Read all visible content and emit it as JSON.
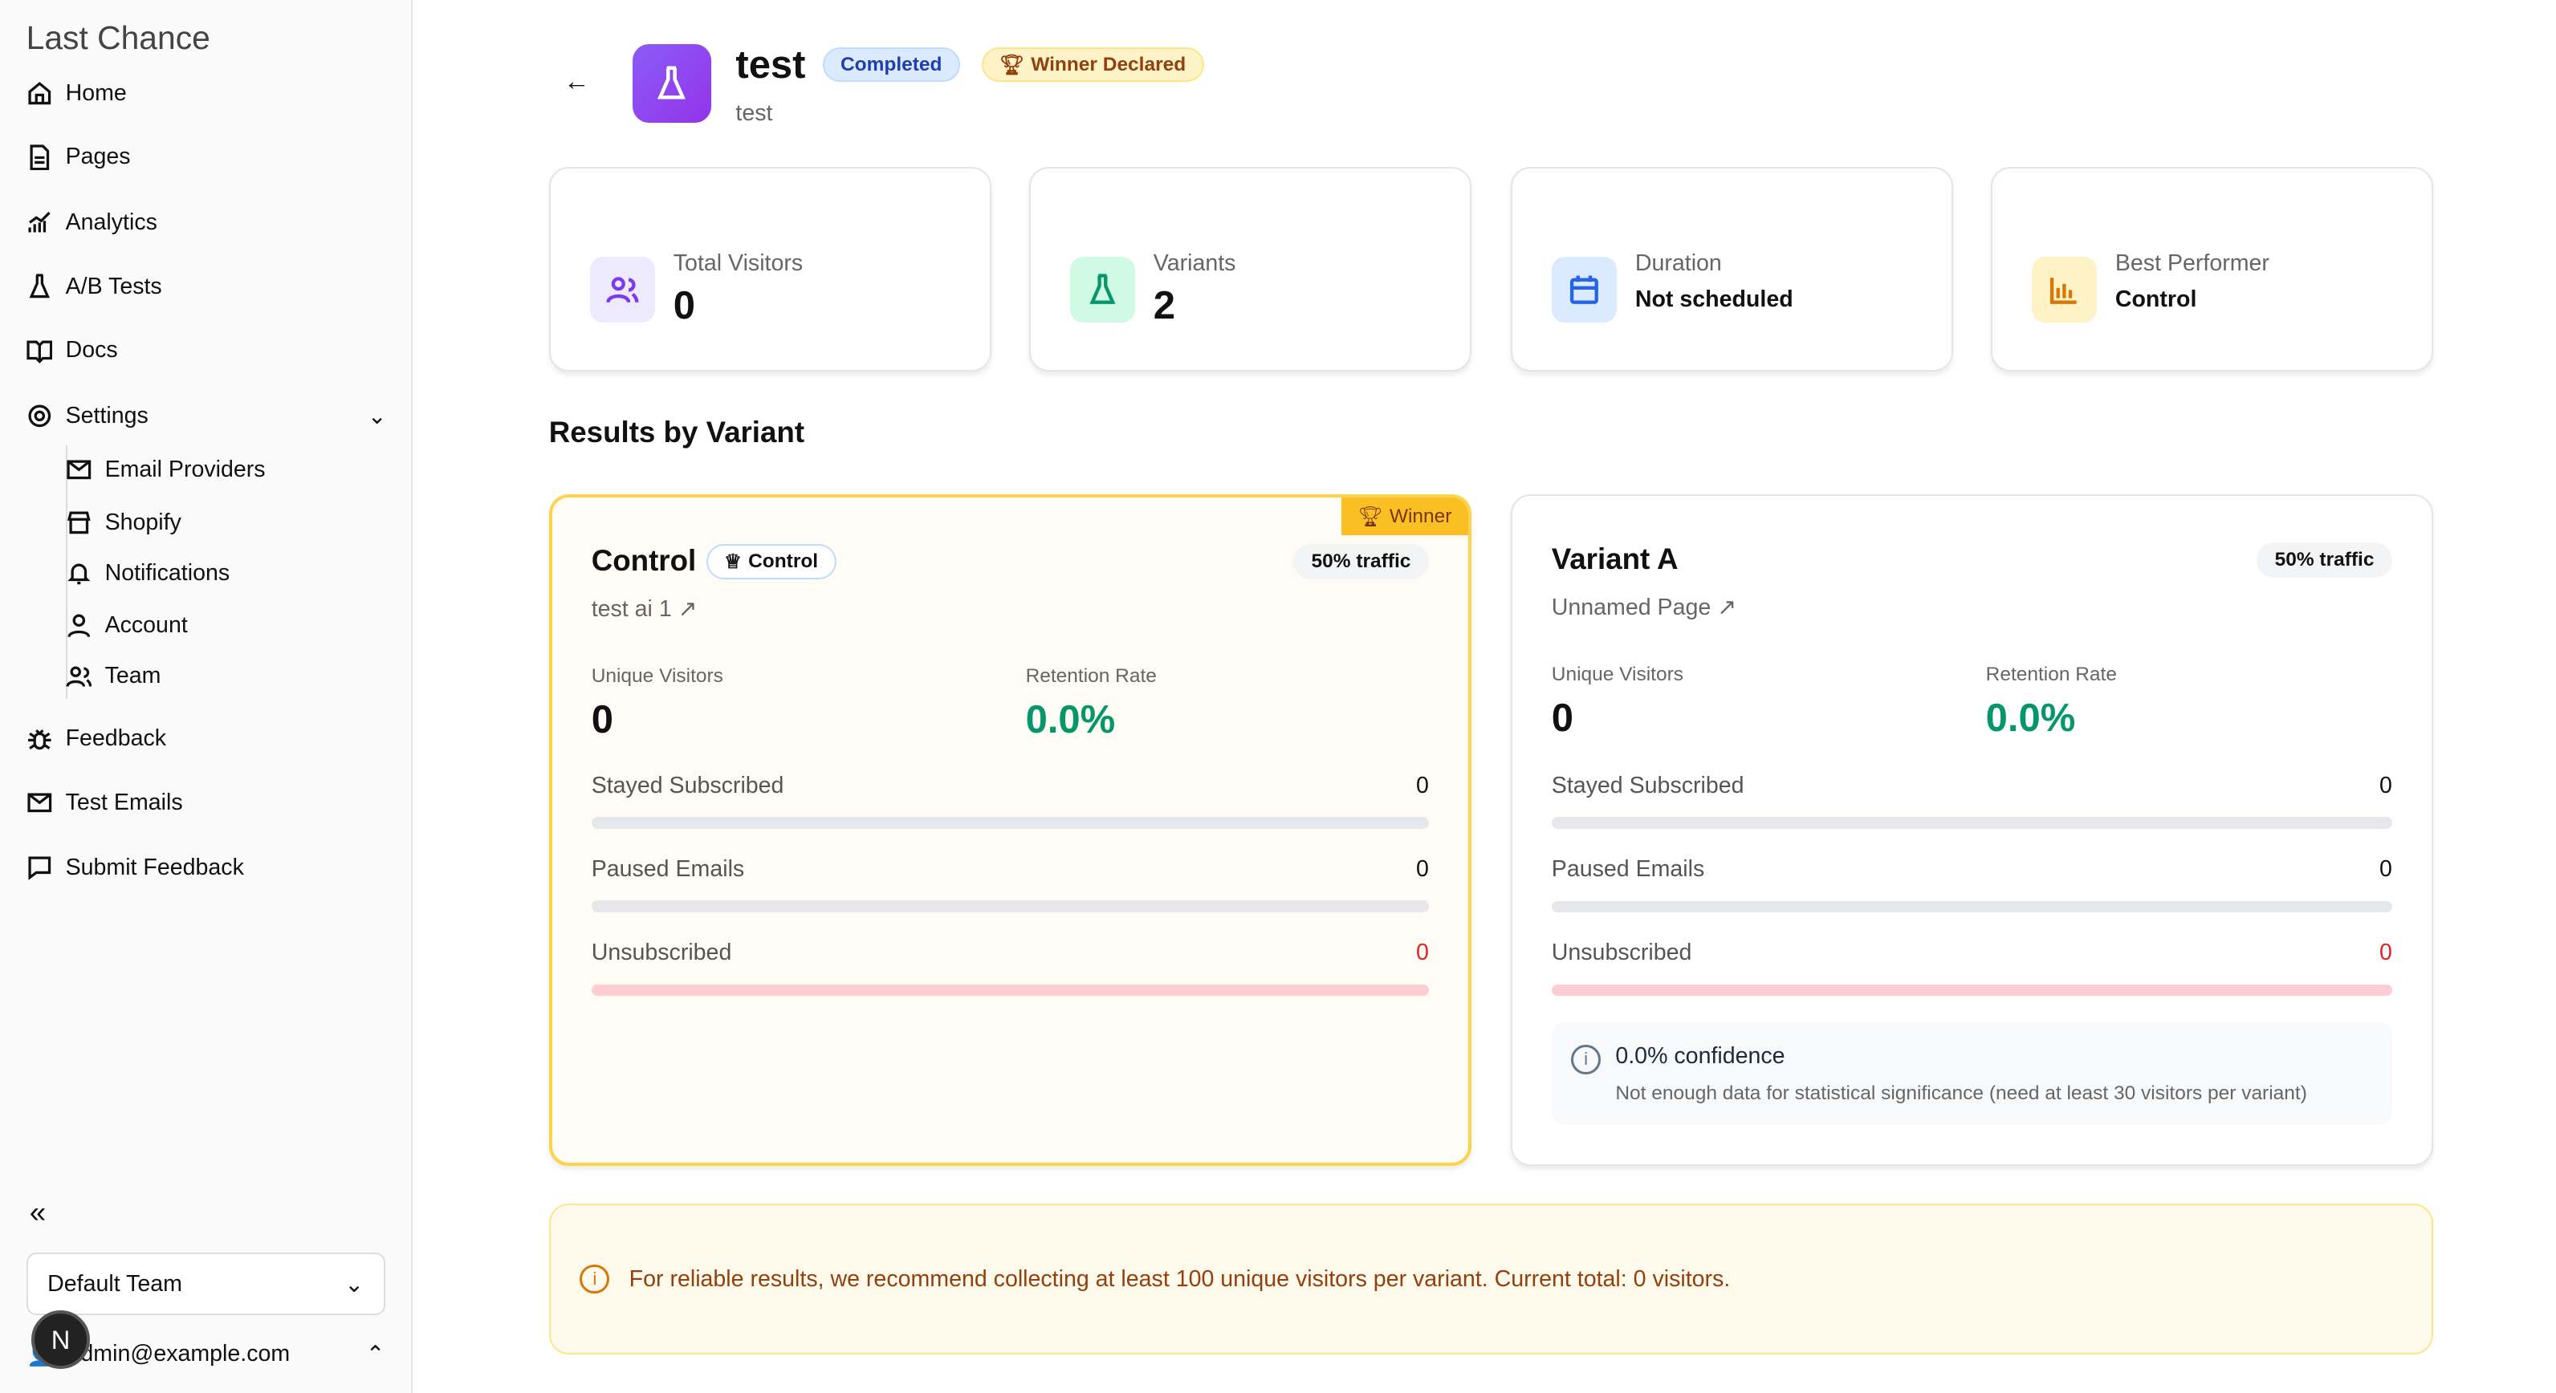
{
  "sidebar": {
    "brand": "Last Chance",
    "items": [
      "Home",
      "Pages",
      "Analytics",
      "A/B Tests",
      "Docs",
      "Settings"
    ],
    "settings_sub": [
      "Email Providers",
      "Shopify",
      "Notifications",
      "Account",
      "Team"
    ],
    "bottom_items": [
      "Feedback",
      "Test Emails",
      "Submit Feedback"
    ],
    "team": "Default Team",
    "user": "admin@example.com",
    "dev_badge": "N"
  },
  "header": {
    "title": "test",
    "subtitle": "test",
    "status": "Completed",
    "winner_badge": "Winner Declared"
  },
  "stats": [
    {
      "label": "Total Visitors",
      "value": "0"
    },
    {
      "label": "Variants",
      "value": "2"
    },
    {
      "label": "Duration",
      "value": "Not scheduled"
    },
    {
      "label": "Best Performer",
      "value": "Control"
    }
  ],
  "section_title": "Results by Variant",
  "variants": [
    {
      "name": "Control",
      "tag": "Control",
      "winner": "Winner",
      "traffic": "50% traffic",
      "page": "test ai 1",
      "unique_label": "Unique Visitors",
      "unique": "0",
      "ret_label": "Retention Rate",
      "retention": "0.0%",
      "rows": [
        {
          "label": "Stayed Subscribed",
          "value": "0"
        },
        {
          "label": "Paused Emails",
          "value": "0"
        },
        {
          "label": "Unsubscribed",
          "value": "0"
        }
      ]
    },
    {
      "name": "Variant A",
      "traffic": "50% traffic",
      "page": "Unnamed Page",
      "unique_label": "Unique Visitors",
      "unique": "0",
      "ret_label": "Retention Rate",
      "retention": "0.0%",
      "rows": [
        {
          "label": "Stayed Subscribed",
          "value": "0"
        },
        {
          "label": "Paused Emails",
          "value": "0"
        },
        {
          "label": "Unsubscribed",
          "value": "0"
        }
      ],
      "confidence": "0.0% confidence",
      "confidence_note": "Not enough data for statistical significance (need at least 30 visitors per variant)"
    }
  ],
  "notice": "For reliable results, we recommend collecting at least 100 unique visitors per variant. Current total: 0 visitors."
}
